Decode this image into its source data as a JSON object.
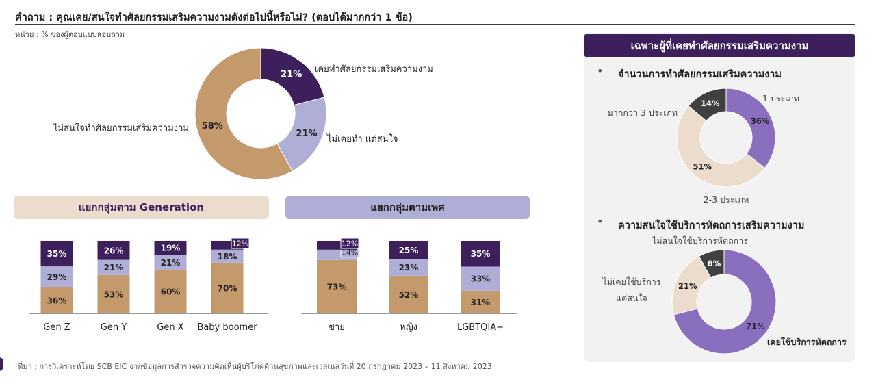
{
  "header": {
    "question": "คำถาม : คุณเคย/สนใจทำศัลยกรรมเสริมความงามดังต่อไปนี้หรือไม่? (ตอบได้มากกว่า 1 ข้อ)",
    "unit": "หน่วย : % ของผู้ตอบแบบสอบถาม"
  },
  "footer": {
    "source": "ที่มา : การวิเคราะห์โดย SCB EIC จากข้อมูลการสำรวจความคิดเห็นผู้บริโภคด้านสุขภาพและเวลเนสวันที่ 20 กรกฎาคม 2023 – 11 สิงหาคม 2023"
  },
  "sections": {
    "generation": "แยกกลุ่มตาม Generation",
    "gender": "แยกกลุ่มตามเพศ",
    "panel_title": "เฉพาะผู้ที่เคยทำศัลยกรรมเสริมความงาม",
    "panel_sub1": "จำนวนการทำศัลยกรรมเสริมความงาม",
    "panel_sub2": "ความสนใจใช้บริการหัตถการเสริมความงาม",
    "bullet": "•"
  },
  "colors": {
    "dark_purple": "#3d1f5c",
    "lavender": "#aeaed6",
    "tan": "#c49a6c",
    "beige": "#ecdccd",
    "mid_purple": "#8a6fbf",
    "dark_gray": "#404040"
  },
  "chart_data": [
    {
      "type": "pie",
      "donut": true,
      "slices": [
        {
          "label": "เคยทำศัลยกรรมเสริมความงาม",
          "value": 21,
          "display": "21%",
          "color": "#3d1f5c"
        },
        {
          "label": "ไม่เคยทำ แต่สนใจ",
          "value": 21,
          "display": "21%",
          "color": "#aeaed6"
        },
        {
          "label": "ไม่สนใจทำศัลยกรรมเสริมความงาม",
          "value": 58,
          "display": "58%",
          "color": "#c49a6c"
        }
      ]
    },
    {
      "type": "bar",
      "stacked": true,
      "categories": [
        "Gen Z",
        "Gen Y",
        "Gen X",
        "Baby boomer"
      ],
      "series": [
        {
          "values": [
            36,
            53,
            60,
            70
          ],
          "display": [
            "36%",
            "53%",
            "60%",
            "70%"
          ],
          "color": "#c49a6c"
        },
        {
          "values": [
            29,
            21,
            21,
            18
          ],
          "display": [
            "29%",
            "21%",
            "21%",
            "18%"
          ],
          "color": "#aeaed6"
        },
        {
          "values": [
            35,
            26,
            19,
            12
          ],
          "display": [
            "35%",
            "26%",
            "19%",
            "12%"
          ],
          "color": "#3d1f5c"
        }
      ]
    },
    {
      "type": "bar",
      "stacked": true,
      "categories": [
        "ชาย",
        "หญิง",
        "LGBTQIA+"
      ],
      "series": [
        {
          "values": [
            73,
            52,
            31
          ],
          "display": [
            "73%",
            "52%",
            "31%"
          ],
          "color": "#c49a6c"
        },
        {
          "values": [
            14,
            23,
            33
          ],
          "display": [
            "14%",
            "23%",
            "33%"
          ],
          "color": "#aeaed6"
        },
        {
          "values": [
            12,
            25,
            35
          ],
          "display": [
            "12%",
            "25%",
            "35%"
          ],
          "color": "#3d1f5c"
        }
      ]
    },
    {
      "type": "pie",
      "donut": true,
      "slices": [
        {
          "label": "1 ประเภท",
          "value": 36,
          "display": "36%",
          "color": "#8a6fbf"
        },
        {
          "label": "2-3 ประเภท",
          "value": 51,
          "display": "51%",
          "color": "#ecdccd"
        },
        {
          "label": "มากกว่า 3 ประเภท",
          "value": 14,
          "display": "14%",
          "color": "#404040"
        }
      ]
    },
    {
      "type": "pie",
      "donut": true,
      "slices": [
        {
          "label": "เคยใช้บริการหัตถการ",
          "value": 71,
          "display": "71%",
          "color": "#8a6fbf"
        },
        {
          "label": "ไม่เคยใช้บริการ แต่สนใจ",
          "value": 21,
          "display": "21%",
          "color": "#ecdccd"
        },
        {
          "label": "ไม่สนใจใช้บริการหัตถการ",
          "value": 8,
          "display": "8%",
          "color": "#404040"
        }
      ]
    }
  ]
}
